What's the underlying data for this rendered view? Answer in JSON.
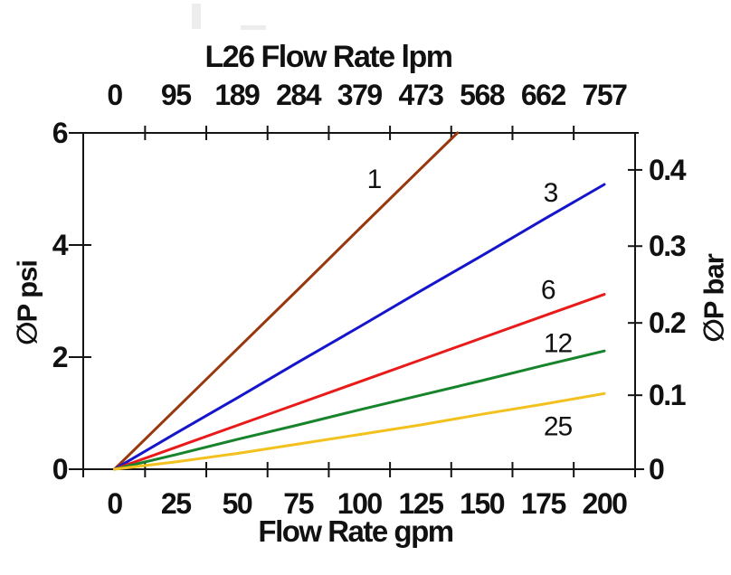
{
  "page": {
    "background": "#ffffff"
  },
  "chart_data": {
    "type": "line",
    "title": "L26 Flow Rate lpm",
    "grid": false,
    "legend": "inline-labels",
    "x_axis_top": {
      "label": "L26 Flow Rate lpm",
      "units": "lpm",
      "tick_labels": [
        "0",
        "95",
        "189",
        "284",
        "379",
        "473",
        "568",
        "662",
        "757"
      ],
      "tick_positions_gpm": [
        0,
        25,
        50,
        75,
        100,
        125,
        150,
        175,
        200
      ]
    },
    "x_axis_bottom": {
      "label": "Flow Rate gpm",
      "units": "gpm",
      "range": [
        0,
        200
      ],
      "ticks": [
        0,
        25,
        50,
        75,
        100,
        125,
        150,
        175,
        200
      ],
      "minor_tick_marks_gpm": [
        12.5,
        37.5,
        62.5,
        87.5,
        112.5,
        137.5,
        162.5,
        187.5
      ]
    },
    "y_axis_left": {
      "label": "∅P psi",
      "units": "psi",
      "range": [
        0,
        6
      ],
      "ticks": [
        0,
        2,
        4,
        6
      ]
    },
    "y_axis_right": {
      "label": "∅P bar",
      "units": "bar",
      "ticks": [
        {
          "label": "0",
          "psi": 0
        },
        {
          "label": "0.1",
          "psi": 1.32
        },
        {
          "label": "0.2",
          "psi": 2.61
        },
        {
          "label": "0.3",
          "psi": 3.98
        },
        {
          "label": "0.4",
          "psi": 5.34
        }
      ]
    },
    "series": [
      {
        "label": "1",
        "color": "#98380e",
        "label_at": {
          "gpm": 106,
          "psi": 5.17
        },
        "points": [
          [
            0,
            0
          ],
          [
            25,
            1.07
          ],
          [
            50,
            2.14
          ],
          [
            75,
            3.21
          ],
          [
            100,
            4.29
          ],
          [
            125,
            5.36
          ],
          [
            140,
            6.0
          ]
        ]
      },
      {
        "label": "3",
        "color": "#1515cc",
        "label_at": {
          "gpm": 178,
          "psi": 4.93
        },
        "points": [
          [
            0,
            0
          ],
          [
            25,
            0.64
          ],
          [
            50,
            1.27
          ],
          [
            75,
            1.91
          ],
          [
            100,
            2.54
          ],
          [
            125,
            3.18
          ],
          [
            150,
            3.81
          ],
          [
            175,
            4.45
          ],
          [
            200,
            5.08
          ]
        ]
      },
      {
        "label": "6",
        "color": "#e81a1a",
        "label_at": {
          "gpm": 177,
          "psi": 3.19
        },
        "points": [
          [
            0,
            0
          ],
          [
            25,
            0.39
          ],
          [
            50,
            0.78
          ],
          [
            75,
            1.17
          ],
          [
            100,
            1.56
          ],
          [
            125,
            1.95
          ],
          [
            150,
            2.34
          ],
          [
            175,
            2.73
          ],
          [
            200,
            3.12
          ]
        ]
      },
      {
        "label": "12",
        "color": "#17842c",
        "label_at": {
          "gpm": 181,
          "psi": 2.24
        },
        "points": [
          [
            0,
            0
          ],
          [
            25,
            0.26
          ],
          [
            50,
            0.53
          ],
          [
            75,
            0.79
          ],
          [
            100,
            1.06
          ],
          [
            125,
            1.32
          ],
          [
            150,
            1.58
          ],
          [
            175,
            1.85
          ],
          [
            200,
            2.11
          ]
        ]
      },
      {
        "label": "25",
        "color": "#f3c11d",
        "label_at": {
          "gpm": 181,
          "psi": 0.76
        },
        "points": [
          [
            0,
            0
          ],
          [
            25,
            0.13
          ],
          [
            50,
            0.28
          ],
          [
            75,
            0.45
          ],
          [
            100,
            0.62
          ],
          [
            125,
            0.79
          ],
          [
            150,
            0.98
          ],
          [
            175,
            1.16
          ],
          [
            200,
            1.35
          ]
        ]
      }
    ]
  }
}
